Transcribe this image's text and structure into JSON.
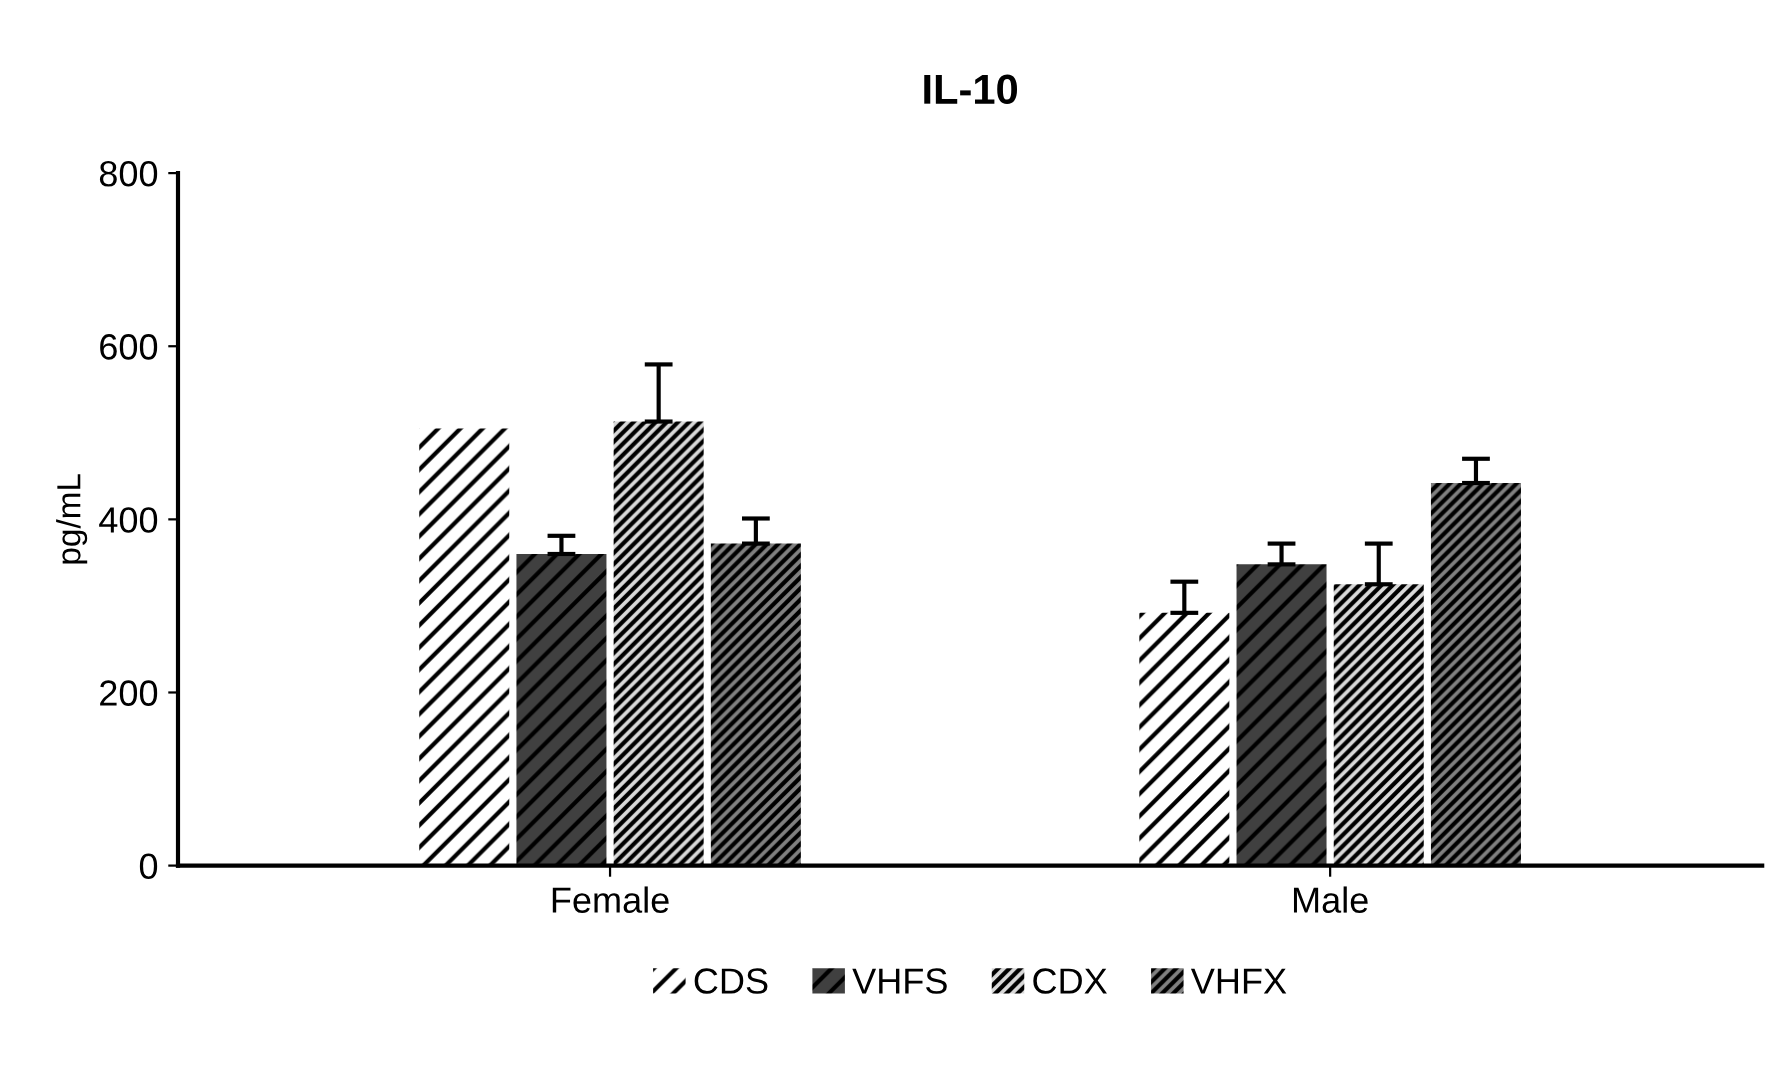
{
  "chart_data": {
    "type": "bar",
    "title": "IL-10",
    "ylabel": "pg/mL",
    "categories": [
      "Female",
      "Male"
    ],
    "series": [
      {
        "name": "CDS",
        "color": "#ffffff",
        "values": [
          505,
          292
        ],
        "errors": [
          null,
          [
            292,
            328
          ]
        ]
      },
      {
        "name": "VHFS",
        "color": "#404040",
        "values": [
          360,
          348
        ],
        "errors": [
          [
            360,
            381
          ],
          [
            348,
            372
          ]
        ]
      },
      {
        "name": "CDX",
        "color": "#d9d9d9",
        "values": [
          513,
          325
        ],
        "errors": [
          [
            513,
            579
          ],
          [
            325,
            372
          ]
        ]
      },
      {
        "name": "VHFX",
        "color": "#808080",
        "values": [
          372,
          442
        ],
        "errors": [
          [
            372,
            401
          ],
          [
            442,
            470
          ]
        ]
      }
    ],
    "ylim": [
      0,
      800
    ],
    "yticks": [
      0,
      200,
      400,
      600,
      800
    ],
    "grid": false,
    "legend": "bottom"
  }
}
